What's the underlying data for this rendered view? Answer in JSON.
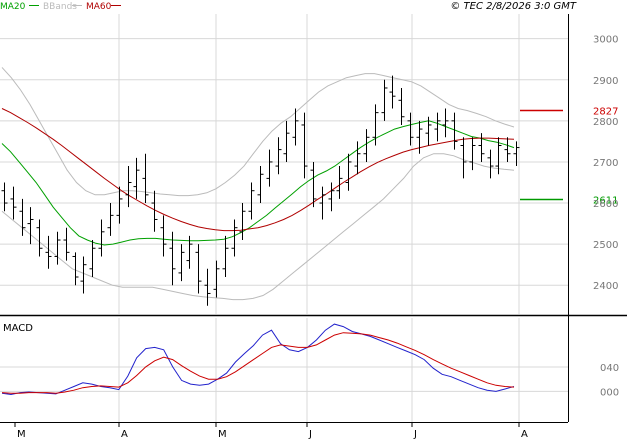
{
  "header": {
    "legend": [
      {
        "label": "MA20",
        "color": "#00a000"
      },
      {
        "label": "BBands",
        "color": "#bbbbbb"
      },
      {
        "label": "MA60",
        "color": "#b00000"
      }
    ],
    "timestamp": "© TEC 2/8/2026 3:0 GMT"
  },
  "chart_data": [
    {
      "type": "ohlc",
      "ylim": [
        2330,
        3060
      ],
      "y_ticks": [
        "3000",
        "2900",
        "2800",
        "2700",
        "2600",
        "2500",
        "2400"
      ],
      "grid": true,
      "levels": [
        {
          "value": 2827,
          "label": "2827",
          "color": "#cc0000"
        },
        {
          "value": 2611,
          "label": "2611",
          "color": "#009900"
        }
      ],
      "series": [
        {
          "name": "MA20",
          "color": "#00a000",
          "values": [
            2745,
            2725,
            2700,
            2675,
            2650,
            2620,
            2590,
            2565,
            2540,
            2520,
            2510,
            2502,
            2498,
            2500,
            2505,
            2510,
            2513,
            2514,
            2514,
            2512,
            2510,
            2509,
            2508,
            2508,
            2509,
            2510,
            2512,
            2518,
            2528,
            2540,
            2555,
            2570,
            2588,
            2605,
            2622,
            2640,
            2655,
            2668,
            2678,
            2690,
            2705,
            2720,
            2735,
            2748,
            2760,
            2770,
            2780,
            2786,
            2791,
            2796,
            2800,
            2794,
            2786,
            2778,
            2770,
            2762,
            2758,
            2752,
            2748,
            2742,
            2735
          ]
        },
        {
          "name": "BBands upper",
          "color": "#bbbbbb",
          "values": [
            2930,
            2905,
            2875,
            2840,
            2800,
            2760,
            2720,
            2680,
            2650,
            2630,
            2620,
            2620,
            2625,
            2630,
            2630,
            2628,
            2625,
            2622,
            2620,
            2618,
            2618,
            2620,
            2625,
            2635,
            2650,
            2668,
            2690,
            2720,
            2750,
            2775,
            2795,
            2810,
            2830,
            2850,
            2870,
            2885,
            2895,
            2905,
            2910,
            2915,
            2915,
            2910,
            2905,
            2900,
            2895,
            2885,
            2870,
            2855,
            2840,
            2830,
            2825,
            2818,
            2810,
            2800,
            2792,
            2785
          ]
        },
        {
          "name": "BBands lower",
          "color": "#bbbbbb",
          "values": [
            2580,
            2560,
            2540,
            2520,
            2500,
            2480,
            2460,
            2440,
            2430,
            2420,
            2410,
            2400,
            2395,
            2395,
            2395,
            2395,
            2390,
            2385,
            2380,
            2375,
            2372,
            2370,
            2368,
            2365,
            2365,
            2368,
            2375,
            2390,
            2410,
            2430,
            2450,
            2470,
            2490,
            2510,
            2530,
            2550,
            2570,
            2590,
            2610,
            2635,
            2660,
            2690,
            2710,
            2720,
            2720,
            2715,
            2705,
            2698,
            2690,
            2685,
            2682,
            2680
          ]
        },
        {
          "name": "MA60",
          "color": "#b00000",
          "values": [
            2830,
            2820,
            2808,
            2796,
            2783,
            2769,
            2755,
            2740,
            2724,
            2708,
            2692,
            2676,
            2660,
            2645,
            2630,
            2617,
            2605,
            2593,
            2582,
            2572,
            2563,
            2555,
            2548,
            2542,
            2538,
            2535,
            2533,
            2533,
            2534,
            2537,
            2540,
            2545,
            2552,
            2560,
            2570,
            2582,
            2595,
            2609,
            2622,
            2636,
            2650,
            2663,
            2676,
            2688,
            2699,
            2708,
            2716,
            2724,
            2730,
            2735,
            2740,
            2744,
            2748,
            2752,
            2755,
            2757,
            2758,
            2758,
            2757,
            2756,
            2755
          ]
        }
      ],
      "ohlc": [
        [
          2630,
          2650,
          2580,
          2600
        ],
        [
          2610,
          2640,
          2560,
          2590
        ],
        [
          2580,
          2610,
          2520,
          2540
        ],
        [
          2550,
          2590,
          2500,
          2560
        ],
        [
          2540,
          2560,
          2470,
          2490
        ],
        [
          2480,
          2520,
          2440,
          2470
        ],
        [
          2470,
          2530,
          2450,
          2510
        ],
        [
          2510,
          2540,
          2460,
          2480
        ],
        [
          2470,
          2480,
          2400,
          2420
        ],
        [
          2410,
          2470,
          2380,
          2450
        ],
        [
          2440,
          2510,
          2420,
          2490
        ],
        [
          2490,
          2560,
          2470,
          2530
        ],
        [
          2540,
          2600,
          2520,
          2570
        ],
        [
          2570,
          2640,
          2550,
          2610
        ],
        [
          2620,
          2690,
          2590,
          2650
        ],
        [
          2640,
          2710,
          2610,
          2680
        ],
        [
          2660,
          2720,
          2600,
          2620
        ],
        [
          2600,
          2630,
          2530,
          2560
        ],
        [
          2540,
          2570,
          2470,
          2500
        ],
        [
          2490,
          2530,
          2400,
          2440
        ],
        [
          2430,
          2500,
          2410,
          2480
        ],
        [
          2460,
          2520,
          2440,
          2500
        ],
        [
          2480,
          2500,
          2380,
          2410
        ],
        [
          2400,
          2440,
          2350,
          2380
        ],
        [
          2390,
          2460,
          2370,
          2440
        ],
        [
          2440,
          2520,
          2420,
          2490
        ],
        [
          2490,
          2560,
          2470,
          2540
        ],
        [
          2530,
          2600,
          2510,
          2580
        ],
        [
          2580,
          2650,
          2560,
          2630
        ],
        [
          2620,
          2690,
          2600,
          2670
        ],
        [
          2660,
          2730,
          2640,
          2700
        ],
        [
          2690,
          2760,
          2670,
          2730
        ],
        [
          2720,
          2800,
          2700,
          2770
        ],
        [
          2760,
          2830,
          2740,
          2800
        ],
        [
          2790,
          2820,
          2660,
          2690
        ],
        [
          2680,
          2700,
          2590,
          2610
        ],
        [
          2600,
          2640,
          2560,
          2620
        ],
        [
          2610,
          2650,
          2580,
          2630
        ],
        [
          2630,
          2690,
          2610,
          2660
        ],
        [
          2650,
          2720,
          2630,
          2700
        ],
        [
          2690,
          2750,
          2670,
          2720
        ],
        [
          2720,
          2780,
          2700,
          2760
        ],
        [
          2760,
          2840,
          2740,
          2820
        ],
        [
          2820,
          2900,
          2800,
          2880
        ],
        [
          2870,
          2910,
          2830,
          2860
        ],
        [
          2850,
          2880,
          2790,
          2810
        ],
        [
          2800,
          2820,
          2740,
          2760
        ],
        [
          2760,
          2800,
          2720,
          2780
        ],
        [
          2770,
          2810,
          2740,
          2790
        ],
        [
          2780,
          2820,
          2750,
          2800
        ],
        [
          2790,
          2830,
          2760,
          2800
        ],
        [
          2800,
          2820,
          2730,
          2750
        ],
        [
          2740,
          2760,
          2660,
          2700
        ],
        [
          2700,
          2760,
          2680,
          2740
        ],
        [
          2740,
          2770,
          2700,
          2720
        ],
        [
          2710,
          2730,
          2660,
          2690
        ],
        [
          2690,
          2760,
          2670,
          2740
        ],
        [
          2730,
          2760,
          2700,
          2720
        ],
        [
          2720,
          2750,
          2690,
          2735
        ]
      ]
    },
    {
      "type": "line",
      "title": "MACD",
      "ylim": [
        -50,
        120
      ],
      "y_ticks": [
        "040",
        "000"
      ],
      "grid": true,
      "series": [
        {
          "name": "MACD",
          "color": "#2222cc",
          "values": [
            -3,
            -5,
            -2,
            -1,
            -2,
            -3,
            -4,
            2,
            8,
            14,
            12,
            8,
            6,
            3,
            25,
            55,
            70,
            72,
            68,
            40,
            18,
            12,
            10,
            12,
            20,
            30,
            48,
            62,
            75,
            92,
            100,
            78,
            68,
            65,
            72,
            84,
            100,
            110,
            106,
            98,
            94,
            90,
            84,
            78,
            72,
            66,
            60,
            52,
            38,
            28,
            24,
            18,
            12,
            6,
            2,
            0,
            4,
            8
          ]
        },
        {
          "name": "Signal",
          "color": "#cc0000",
          "values": [
            -2,
            -3,
            -3,
            -2,
            -2,
            -2,
            -3,
            -1,
            2,
            6,
            8,
            9,
            8,
            7,
            14,
            26,
            40,
            50,
            56,
            52,
            42,
            33,
            25,
            20,
            20,
            24,
            32,
            42,
            52,
            62,
            72,
            76,
            74,
            72,
            72,
            76,
            84,
            92,
            96,
            95,
            94,
            92,
            88,
            84,
            79,
            73,
            67,
            60,
            52,
            45,
            38,
            32,
            26,
            20,
            14,
            10,
            8,
            7
          ]
        }
      ]
    }
  ],
  "x_axis": {
    "labels": [
      "M",
      "A",
      "M",
      "J",
      "J",
      "A"
    ]
  }
}
